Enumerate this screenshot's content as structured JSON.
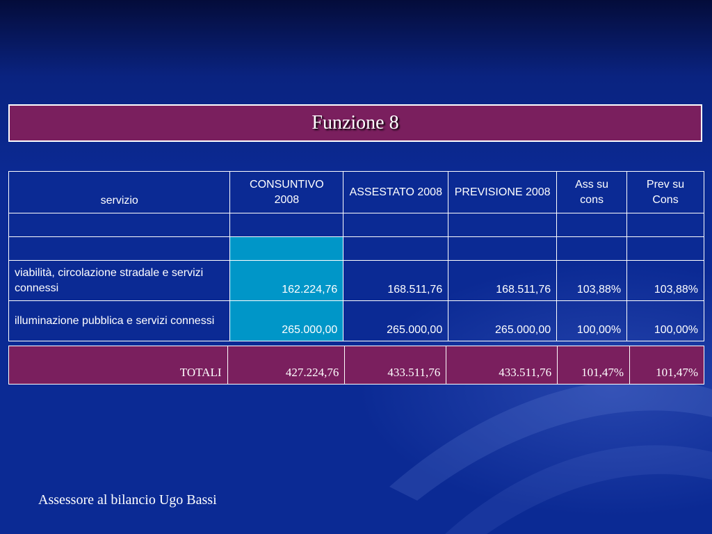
{
  "title": "Funzione 8",
  "table": {
    "headers": [
      "servizio",
      "CONSUNTIVO 2008",
      "ASSESTATO 2008",
      "PREVISIONE 2008",
      "Ass su cons",
      "Prev su Cons"
    ],
    "rows": [
      [
        "",
        "",
        "",
        "",
        "",
        ""
      ],
      [
        "",
        "",
        "",
        "",
        "",
        ""
      ],
      [
        "viabilità, circolazione stradale e servizi connessi",
        "162.224,76",
        "168.511,76",
        "168.511,76",
        "103,88%",
        "103,88%"
      ],
      [
        "illuminazione pubblica e servizi connessi",
        "265.000,00",
        "265.000,00",
        "265.000,00",
        "100,00%",
        "100,00%"
      ]
    ]
  },
  "totals": {
    "label": "TOTALI",
    "values": [
      "427.224,76",
      "433.511,76",
      "433.511,76",
      "101,47%",
      "101,47%"
    ]
  },
  "footer": "Assessore al bilancio Ugo Bassi",
  "colors": {
    "background": "#0b2a94",
    "title_bg": "#7a1f5e",
    "totals_bg": "#7a1f5e",
    "highlight_cell": "#0096c8",
    "text": "#ffffff"
  }
}
